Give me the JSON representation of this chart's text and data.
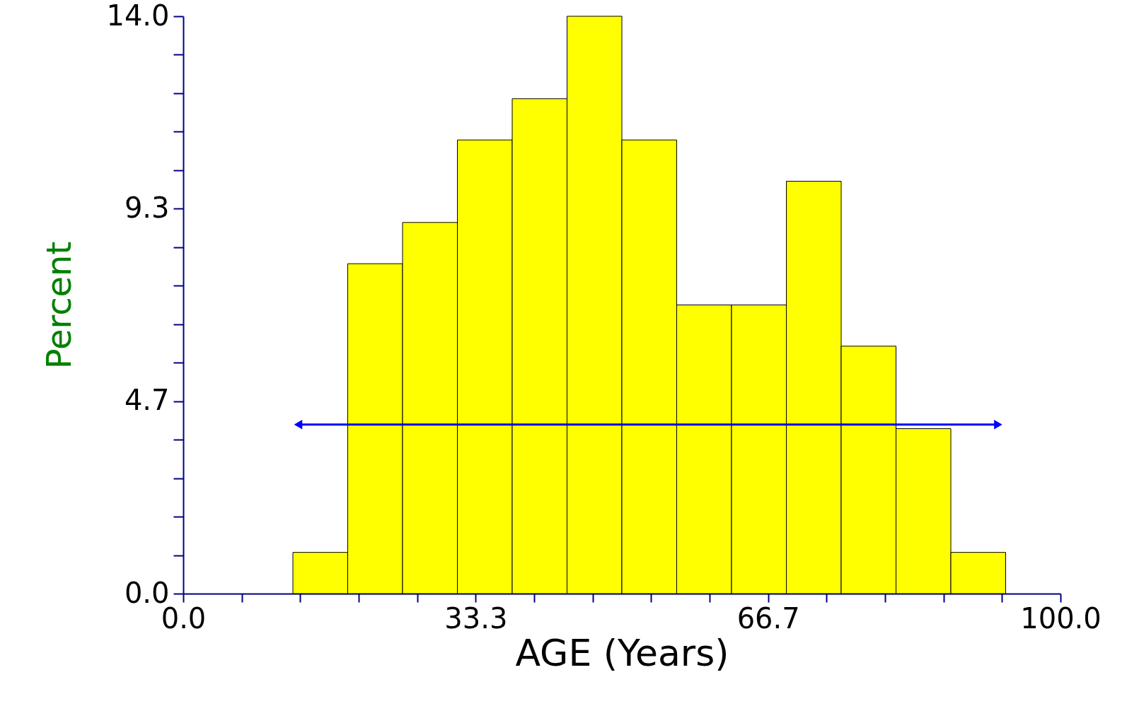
{
  "chart_data": {
    "type": "histogram",
    "xlabel": "AGE (Years)",
    "ylabel": "Percent",
    "bins": [
      12.5,
      18.75,
      25,
      31.25,
      37.5,
      43.75,
      50,
      56.25,
      62.5,
      68.75,
      75,
      81.25,
      87.5,
      93.75
    ],
    "values": [
      1,
      8,
      9,
      11,
      12,
      14,
      11,
      7,
      7,
      10,
      6,
      4,
      1
    ],
    "color": "#ffff00",
    "series": [
      {
        "type": "line",
        "x": [
          13.1,
          92.9
        ],
        "values": [
          4.1,
          4.1
        ],
        "color": "#0000ff",
        "marker": "triangle"
      }
    ],
    "xlim": [
      0,
      100
    ],
    "xticks": [
      {
        "value": 0,
        "label": "0.0"
      },
      {
        "value": 6.6667,
        "label": null
      },
      {
        "value": 13.3333,
        "label": null
      },
      {
        "value": 20,
        "label": null
      },
      {
        "value": 26.6667,
        "label": null
      },
      {
        "value": 33.3333,
        "label": "33.3"
      },
      {
        "value": 40,
        "label": null
      },
      {
        "value": 46.6667,
        "label": null
      },
      {
        "value": 53.3333,
        "label": null
      },
      {
        "value": 60,
        "label": null
      },
      {
        "value": 66.6667,
        "label": "66.7"
      },
      {
        "value": 73.3333,
        "label": null
      },
      {
        "value": 80,
        "label": null
      },
      {
        "value": 86.6667,
        "label": null
      },
      {
        "value": 93.3333,
        "label": null
      },
      {
        "value": 100,
        "label": "100.0"
      }
    ],
    "ylim": [
      0,
      14
    ],
    "yticks": [
      {
        "value": 0,
        "label": "0.0"
      },
      {
        "value": 0.9333,
        "label": null
      },
      {
        "value": 1.8667,
        "label": null
      },
      {
        "value": 2.8,
        "label": null
      },
      {
        "value": 3.7333,
        "label": null
      },
      {
        "value": 4.6667,
        "label": "4.7"
      },
      {
        "value": 5.6,
        "label": null
      },
      {
        "value": 6.5333,
        "label": null
      },
      {
        "value": 7.4667,
        "label": null
      },
      {
        "value": 8.4,
        "label": null
      },
      {
        "value": 9.3333,
        "label": "9.3"
      },
      {
        "value": 10.2667,
        "label": null
      },
      {
        "value": 11.2,
        "label": null
      },
      {
        "value": 12.1333,
        "label": null
      },
      {
        "value": 13.0667,
        "label": null
      },
      {
        "value": 14,
        "label": "14.0"
      }
    ],
    "grid": false
  }
}
